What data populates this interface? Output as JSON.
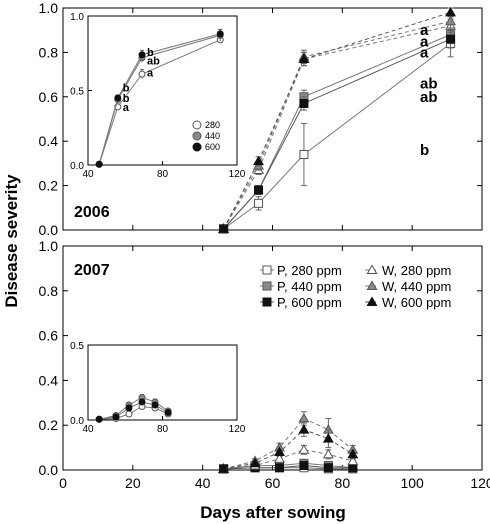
{
  "chart_data": {
    "type": "line",
    "xlabel": "Days after sowing",
    "ylabel": "Disease severity",
    "xlim": [
      0,
      120
    ],
    "xticks": [
      0,
      20,
      40,
      60,
      80,
      100,
      120
    ],
    "ylim": [
      0,
      1.0
    ],
    "yticks": [
      0.0,
      0.2,
      0.4,
      0.6,
      0.8,
      1.0
    ],
    "ytick_labels": [
      "0.0",
      "0.2",
      "0.4",
      "0.6",
      "0.8",
      "1.0"
    ],
    "legend": {
      "placement": "right",
      "entries": [
        "P, 280 ppm",
        "P, 440 ppm",
        "P, 600 ppm",
        "W, 280 ppm",
        "W, 440 ppm",
        "W, 600 ppm"
      ]
    },
    "panels": [
      {
        "label": "2006",
        "x": [
          46,
          56,
          69,
          111
        ],
        "series": [
          {
            "name": "P, 280 ppm",
            "values": [
              0.005,
              0.12,
              0.34,
              0.84
            ],
            "err": [
              0,
              0.03,
              0.14,
              0.06
            ]
          },
          {
            "name": "P, 440 ppm",
            "values": [
              0.005,
              0.18,
              0.6,
              0.88
            ],
            "err": [
              0,
              0.02,
              0.03,
              0.04
            ]
          },
          {
            "name": "P, 600 ppm",
            "values": [
              0.005,
              0.18,
              0.57,
              0.86
            ],
            "err": [
              0,
              0.02,
              0.03,
              0.04
            ]
          },
          {
            "name": "W, 280 ppm",
            "values": [
              0.005,
              0.27,
              0.77,
              0.92
            ],
            "err": [
              0,
              0.02,
              0.03,
              0.03
            ]
          },
          {
            "name": "W, 440 ppm",
            "values": [
              0.005,
              0.29,
              0.78,
              0.94
            ],
            "err": [
              0,
              0.02,
              0.03,
              0.03
            ]
          },
          {
            "name": "W, 600 ppm",
            "values": [
              0.005,
              0.31,
              0.77,
              0.98
            ],
            "err": [
              0,
              0.02,
              0.03,
              0.02
            ]
          }
        ],
        "letters": [
          {
            "text": "a",
            "y": 0.9
          },
          {
            "text": "a",
            "y": 0.85
          },
          {
            "text": "a",
            "y": 0.8
          },
          {
            "text": "ab",
            "y": 0.66
          },
          {
            "text": "ab",
            "y": 0.6
          },
          {
            "text": "b",
            "y": 0.36
          }
        ],
        "inset": {
          "xlim": [
            40,
            120
          ],
          "xticks": [
            40,
            80,
            120
          ],
          "ylim": [
            0,
            1.0
          ],
          "yticks": [
            0.0,
            0.5,
            1.0
          ],
          "ytick_labels": [
            "0.0",
            "0.5",
            "1.0"
          ],
          "x": [
            46,
            56,
            69,
            111
          ],
          "legend": [
            "280",
            "440",
            "600"
          ],
          "series": [
            {
              "name": "280",
              "values": [
                0.005,
                0.39,
                0.61,
                0.84
              ],
              "err": [
                0,
                0.02,
                0.03,
                0.02
              ]
            },
            {
              "name": "440",
              "values": [
                0.005,
                0.44,
                0.72,
                0.87
              ],
              "err": [
                0,
                0.02,
                0.03,
                0.04
              ]
            },
            {
              "name": "600",
              "values": [
                0.005,
                0.45,
                0.74,
                0.88
              ],
              "err": [
                0,
                0.02,
                0.03,
                0.03
              ]
            }
          ],
          "letters": [
            {
              "text": "b",
              "x": 69,
              "y": 0.76
            },
            {
              "text": "ab",
              "x": 69,
              "y": 0.7
            },
            {
              "text": "a",
              "x": 69,
              "y": 0.62
            },
            {
              "text": "b",
              "x": 56,
              "y": 0.52
            },
            {
              "text": "b",
              "x": 56,
              "y": 0.45
            },
            {
              "text": "a",
              "x": 56,
              "y": 0.39
            }
          ]
        }
      },
      {
        "label": "2007",
        "x": [
          46,
          55,
          62,
          69,
          76,
          83
        ],
        "series": [
          {
            "name": "P, 280 ppm",
            "values": [
              0.005,
              0.01,
              0.01,
              0.01,
              0.005,
              0.005
            ],
            "err": [
              0,
              0.005,
              0.005,
              0.005,
              0.005,
              0.005
            ]
          },
          {
            "name": "P, 440 ppm",
            "values": [
              0.005,
              0.02,
              0.02,
              0.03,
              0.02,
              0.01
            ],
            "err": [
              0,
              0.005,
              0.005,
              0.01,
              0.01,
              0.005
            ]
          },
          {
            "name": "P, 600 ppm",
            "values": [
              0.005,
              0.01,
              0.01,
              0.02,
              0.01,
              0.01
            ],
            "err": [
              0,
              0.005,
              0.005,
              0.01,
              0.005,
              0.005
            ]
          },
          {
            "name": "W, 280 ppm",
            "values": [
              0.005,
              0.02,
              0.05,
              0.09,
              0.07,
              0.04
            ],
            "err": [
              0,
              0.01,
              0.01,
              0.02,
              0.02,
              0.01
            ]
          },
          {
            "name": "W, 440 ppm",
            "values": [
              0.005,
              0.04,
              0.1,
              0.23,
              0.18,
              0.09
            ],
            "err": [
              0,
              0.01,
              0.02,
              0.03,
              0.05,
              0.02
            ]
          },
          {
            "name": "W, 600 ppm",
            "values": [
              0.005,
              0.03,
              0.08,
              0.18,
              0.14,
              0.07
            ],
            "err": [
              0,
              0.01,
              0.01,
              0.03,
              0.04,
              0.02
            ]
          }
        ],
        "inset": {
          "xlim": [
            40,
            120
          ],
          "xticks": [
            40,
            80,
            120
          ],
          "ylim": [
            0,
            0.5
          ],
          "yticks": [
            0.0,
            0.5
          ],
          "ytick_labels": [
            "0.0",
            "0.5"
          ],
          "x": [
            46,
            55,
            62,
            69,
            76,
            83
          ],
          "series": [
            {
              "name": "280",
              "values": [
                0.005,
                0.01,
                0.04,
                0.09,
                0.08,
                0.04
              ],
              "err": [
                0,
                0.005,
                0.01,
                0.015,
                0.015,
                0.01
              ]
            },
            {
              "name": "440",
              "values": [
                0.005,
                0.03,
                0.1,
                0.15,
                0.12,
                0.06
              ],
              "err": [
                0,
                0.01,
                0.015,
                0.02,
                0.02,
                0.01
              ]
            },
            {
              "name": "600",
              "values": [
                0.005,
                0.02,
                0.08,
                0.12,
                0.1,
                0.05
              ],
              "err": [
                0,
                0.005,
                0.015,
                0.02,
                0.015,
                0.01
              ]
            }
          ]
        }
      }
    ]
  }
}
